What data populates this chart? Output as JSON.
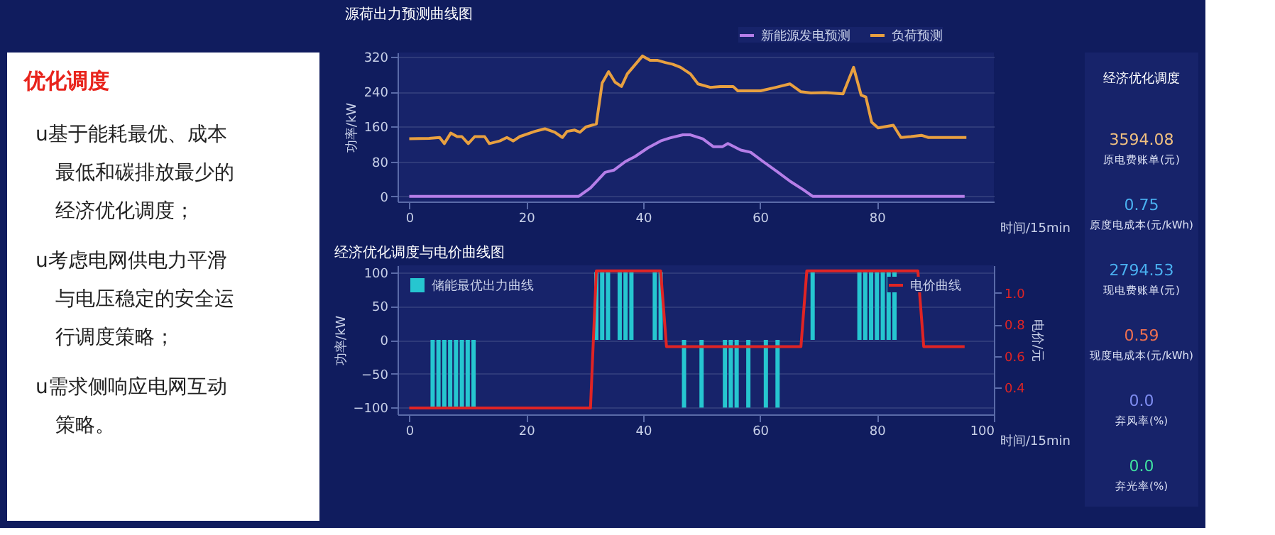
{
  "chart_data": [
    {
      "type": "other",
      "title": "优化调度",
      "annotations": [
        "u基于能耗最优、成本最低和碳排放最少的经济优化调度；",
        "u考虑电网供电力平滑与电压稳定的安全运行调度策略；",
        "u需求侧响应电网互动策略。"
      ]
    },
    {
      "type": "line",
      "title": "源荷出力预测曲线图",
      "xlabel": "时间/15min",
      "ylabel": "功率/kW",
      "xlim": [
        -2,
        100
      ],
      "xticks": [
        0,
        20,
        40,
        60,
        80
      ],
      "ylim": [
        -12,
        330
      ],
      "yticks": [
        0,
        80,
        160,
        240,
        320
      ],
      "grid": "y",
      "legend": "top right",
      "series": [
        {
          "name": "新能源发电预测",
          "color": "#b57ee8",
          "x": [
            0,
            29,
            31,
            33.5,
            35,
            37,
            38.6,
            40.8,
            43,
            44.6,
            46.8,
            48.1,
            50.2,
            52,
            53.6,
            54.5,
            56.7,
            58.4,
            60.5,
            63.1,
            65.2,
            67.4,
            69,
            95
          ],
          "values": [
            0,
            0,
            19,
            55,
            60,
            80,
            91,
            111,
            127,
            134,
            141,
            141,
            132,
            114,
            114,
            121,
            106,
            101,
            80,
            55,
            34,
            15,
            0,
            0
          ]
        },
        {
          "name": "负荷预测",
          "color": "#e8a040",
          "x": [
            0,
            3.4,
            5.2,
            6,
            7.1,
            8.2,
            9,
            10.1,
            11.2,
            12.9,
            13.7,
            15.5,
            16.7,
            17.8,
            18.9,
            21.5,
            23.2,
            24.9,
            26.2,
            27,
            28.3,
            29.2,
            30.2,
            32,
            33,
            34.1,
            35.2,
            36.3,
            37.3,
            39.9,
            41.2,
            42.5,
            43.8,
            45.1,
            46.4,
            48.1,
            49.4,
            51.5,
            53.2,
            55.4,
            56.2,
            60.1,
            62.7,
            65.1,
            67,
            68.7,
            71.2,
            74.2,
            76,
            77.3,
            78.1,
            79.1,
            80.2,
            82.8,
            84.1,
            85.8,
            87.6,
            88.8,
            95.3
          ],
          "values": [
            132,
            133,
            135,
            121,
            145,
            137,
            137,
            121,
            137,
            137,
            121,
            127,
            135,
            127,
            137,
            149,
            155,
            147,
            135,
            149,
            152,
            147,
            159,
            166,
            260,
            286,
            262,
            252,
            281,
            322,
            312,
            312,
            307,
            303,
            296,
            281,
            258,
            250,
            252,
            252,
            242,
            242,
            250,
            258,
            240,
            237,
            238,
            235,
            296,
            232,
            228,
            170,
            157,
            163,
            135,
            137,
            140,
            135,
            135
          ]
        }
      ]
    },
    {
      "type": "bar",
      "title": "经济优化调度与电价曲线图",
      "xlabel": "时间/15min",
      "ylabel": "功率/kW",
      "y2label": "电价/元",
      "xlim": [
        -2,
        100
      ],
      "xticks": [
        0,
        20,
        40,
        60,
        80,
        100
      ],
      "ylim": [
        -110,
        110
      ],
      "yticks": [
        -100,
        -50,
        0,
        50,
        100
      ],
      "y2lim": [
        0.23,
        1.175
      ],
      "y2ticks": [
        0.4,
        0.6,
        0.8,
        {
          "value": 1,
          "label": "1.0"
        }
      ],
      "grid": "y",
      "legend": "top",
      "x": [
        0,
        1,
        2,
        3,
        4,
        5,
        6,
        7,
        8,
        9,
        10,
        11,
        12,
        13,
        14,
        15,
        16,
        17,
        18,
        19,
        20,
        21,
        22,
        23,
        24,
        25,
        26,
        27,
        28,
        29,
        30,
        31,
        32,
        33,
        34,
        35,
        36,
        37,
        38,
        39,
        40,
        41,
        42,
        43,
        44,
        45,
        46,
        47,
        48,
        49,
        50,
        51,
        52,
        53,
        54,
        55,
        56,
        57,
        58,
        59,
        60,
        61,
        62,
        63,
        64,
        65,
        66,
        67,
        68,
        69,
        70,
        71,
        72,
        73,
        74,
        75,
        76,
        77,
        78,
        79,
        80,
        81,
        82,
        83,
        84,
        85,
        86,
        87,
        88,
        89,
        90,
        91,
        92,
        93,
        94,
        95
      ],
      "series": [
        {
          "name": "储能最优出力曲线",
          "color": "#26c6d0",
          "values": [
            0,
            0,
            0,
            0,
            -100,
            -100,
            -100,
            -100,
            -100,
            -100,
            -100,
            -100,
            0,
            0,
            0,
            0,
            0,
            0,
            0,
            0,
            0,
            0,
            0,
            0,
            0,
            0,
            0,
            0,
            0,
            0,
            0,
            0,
            100,
            100,
            100,
            0,
            100,
            100,
            100,
            0,
            0,
            0,
            100,
            100,
            0,
            0,
            0,
            -100,
            0,
            0,
            -100,
            0,
            0,
            0,
            -100,
            -100,
            -100,
            0,
            -100,
            0,
            0,
            -100,
            0,
            -100,
            0,
            0,
            0,
            0,
            0,
            100,
            0,
            0,
            0,
            0,
            0,
            0,
            0,
            100,
            100,
            100,
            100,
            100,
            100,
            100,
            0,
            0,
            0,
            0,
            0,
            0,
            0,
            0,
            0,
            0,
            0,
            0
          ]
        },
        {
          "name": "电价曲线",
          "type": "line",
          "axis": "y2",
          "color": "#e02424",
          "values": [
            0.27,
            0.27,
            0.27,
            0.27,
            0.27,
            0.27,
            0.27,
            0.27,
            0.27,
            0.27,
            0.27,
            0.27,
            0.27,
            0.27,
            0.27,
            0.27,
            0.27,
            0.27,
            0.27,
            0.27,
            0.27,
            0.27,
            0.27,
            0.27,
            0.27,
            0.27,
            0.27,
            0.27,
            0.27,
            0.27,
            0.27,
            0.27,
            1.14,
            1.14,
            1.14,
            1.14,
            1.14,
            1.14,
            1.14,
            1.14,
            1.14,
            1.14,
            1.14,
            1.14,
            0.66,
            0.66,
            0.66,
            0.66,
            0.66,
            0.66,
            0.66,
            0.66,
            0.66,
            0.66,
            0.66,
            0.66,
            0.66,
            0.66,
            0.66,
            0.66,
            0.66,
            0.66,
            0.66,
            0.66,
            0.66,
            0.66,
            0.66,
            0.66,
            1.14,
            1.14,
            1.14,
            1.14,
            1.14,
            1.14,
            1.14,
            1.14,
            1.14,
            1.14,
            1.14,
            1.14,
            1.14,
            1.14,
            1.14,
            1.14,
            1.14,
            1.14,
            1.14,
            1.14,
            0.66,
            0.66,
            0.66,
            0.66,
            0.66,
            0.66,
            0.66,
            0.66
          ]
        }
      ]
    },
    {
      "type": "other",
      "annotations": [
        "经济优化调度",
        "3594.08",
        "原电费账单(元)",
        "0.75",
        "原度电成本(元/kWh)",
        "2794.53",
        "现电费账单(元)",
        "0.59",
        "现度电成本(元/kWh)",
        "0.0",
        "弃风率(%)",
        "0.0",
        "弃光率(%)"
      ]
    }
  ]
}
